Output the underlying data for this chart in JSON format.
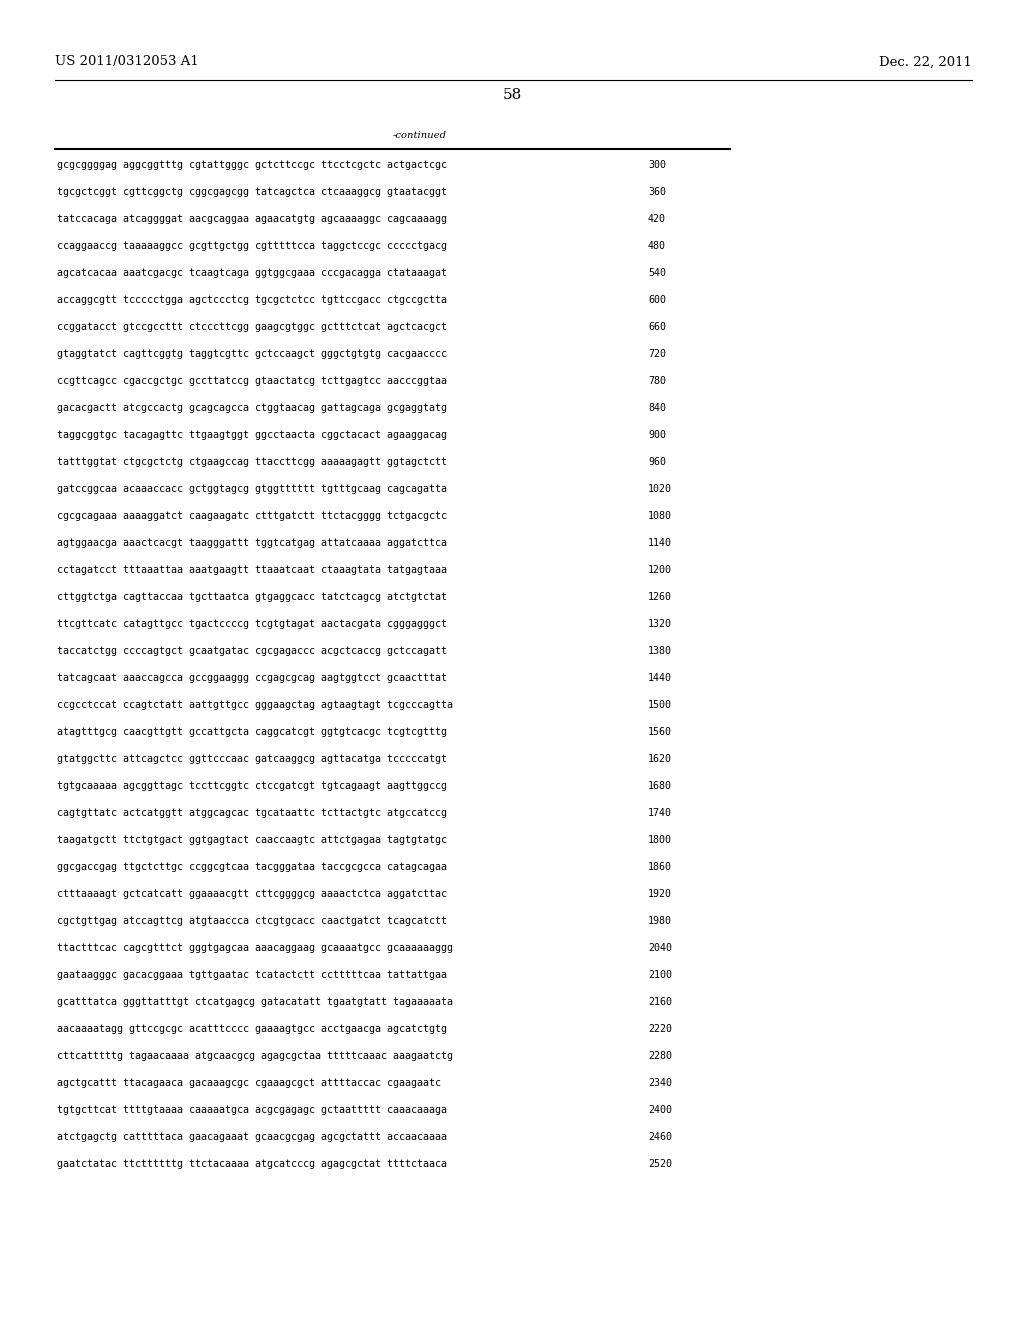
{
  "header_left": "US 2011/0312053 A1",
  "header_right": "Dec. 22, 2011",
  "page_number": "58",
  "continued_label": "-continued",
  "background_color": "#ffffff",
  "text_color": "#000000",
  "font_size_header": 9.5,
  "font_size_body": 7.2,
  "font_size_page": 11,
  "lines": [
    {
      "seq": "gcgcggggag aggcggtttg cgtattgggc gctcttccgc ttcctcgctc actgactcgc",
      "num": "300"
    },
    {
      "seq": "tgcgctcggt cgttcggctg cggcgagcgg tatcagctca ctcaaaggcg gtaatacggt",
      "num": "360"
    },
    {
      "seq": "tatccacaga atcaggggat aacgcaggaa agaacatgtg agcaaaaggc cagcaaaagg",
      "num": "420"
    },
    {
      "seq": "ccaggaaccg taaaaaggcc gcgttgctgg cgtttttcca taggctccgc ccccctgacg",
      "num": "480"
    },
    {
      "seq": "agcatcacaa aaatcgacgc tcaagtcaga ggtggcgaaa cccgacagga ctataaagat",
      "num": "540"
    },
    {
      "seq": "accaggcgtt tccccctgga agctccctcg tgcgctctcc tgttccgacc ctgccgctta",
      "num": "600"
    },
    {
      "seq": "ccggatacct gtccgccttt ctcccttcgg gaagcgtggc gctttctcat agctcacgct",
      "num": "660"
    },
    {
      "seq": "gtaggtatct cagttcggtg taggtcgttc gctccaagct gggctgtgtg cacgaacccc",
      "num": "720"
    },
    {
      "seq": "ccgttcagcc cgaccgctgc gccttatccg gtaactatcg tcttgagtcc aacccggtaa",
      "num": "780"
    },
    {
      "seq": "gacacgactt atcgccactg gcagcagcca ctggtaacag gattagcaga gcgaggtatg",
      "num": "840"
    },
    {
      "seq": "taggcggtgc tacagagttc ttgaagtggt ggcctaacta cggctacact agaaggacag",
      "num": "900"
    },
    {
      "seq": "tatttggtat ctgcgctctg ctgaagccag ttaccttcgg aaaaagagtt ggtagctctt",
      "num": "960"
    },
    {
      "seq": "gatccggcaa acaaaccacc gctggtagcg gtggtttttt tgtttgcaag cagcagatta",
      "num": "1020"
    },
    {
      "seq": "cgcgcagaaa aaaaggatct caagaagatc ctttgatctt ttctacgggg tctgacgctc",
      "num": "1080"
    },
    {
      "seq": "agtggaacga aaactcacgt taagggattt tggtcatgag attatcaaaa aggatcttca",
      "num": "1140"
    },
    {
      "seq": "cctagatcct tttaaattaa aaatgaagtt ttaaatcaat ctaaagtata tatgagtaaa",
      "num": "1200"
    },
    {
      "seq": "cttggtctga cagttaccaa tgcttaatca gtgaggcacc tatctcagcg atctgtctat",
      "num": "1260"
    },
    {
      "seq": "ttcgttcatc catagttgcc tgactccccg tcgtgtagat aactacgata cgggagggct",
      "num": "1320"
    },
    {
      "seq": "taccatctgg ccccagtgct gcaatgatac cgcgagaccc acgctcaccg gctccagatt",
      "num": "1380"
    },
    {
      "seq": "tatcagcaat aaaccagcca gccggaaggg ccgagcgcag aagtggtcct gcaactttat",
      "num": "1440"
    },
    {
      "seq": "ccgcctccat ccagtctatt aattgttgcc gggaagctag agtaagtagt tcgcccagtta",
      "num": "1500"
    },
    {
      "seq": "atagtttgcg caacgttgtt gccattgcta caggcatcgt ggtgtcacgc tcgtcgtttg",
      "num": "1560"
    },
    {
      "seq": "gtatggcttc attcagctcc ggttcccaac gatcaaggcg agttacatga tcccccatgt",
      "num": "1620"
    },
    {
      "seq": "tgtgcaaaaa agcggttagc tccttcggtc ctccgatcgt tgtcagaagt aagttggccg",
      "num": "1680"
    },
    {
      "seq": "cagtgttatc actcatggtt atggcagcac tgcataattc tcttactgtc atgccatccg",
      "num": "1740"
    },
    {
      "seq": "taagatgctt ttctgtgact ggtgagtact caaccaagtc attctgagaa tagtgtatgc",
      "num": "1800"
    },
    {
      "seq": "ggcgaccgag ttgctcttgc ccggcgtcaa tacgggataa taccgcgcca catagcagaa",
      "num": "1860"
    },
    {
      "seq": "ctttaaaagt gctcatcatt ggaaaacgtt cttcggggcg aaaactctca aggatcttac",
      "num": "1920"
    },
    {
      "seq": "cgctgttgag atccagttcg atgtaaccca ctcgtgcacc caactgatct tcagcatctt",
      "num": "1980"
    },
    {
      "seq": "ttactttcac cagcgtttct gggtgagcaa aaacaggaag gcaaaatgcc gcaaaaaaggg",
      "num": "2040"
    },
    {
      "seq": "gaataagggc gacacggaaa tgttgaatac tcatactctt cctttttcaa tattattgaa",
      "num": "2100"
    },
    {
      "seq": "gcatttatca gggttatttgt ctcatgagcg gatacatatt tgaatgtatt tagaaaaata",
      "num": "2160"
    },
    {
      "seq": "aacaaaatagg gttccgcgc acatttcccc gaaaagtgcc acctgaacga agcatctgtg",
      "num": "2220"
    },
    {
      "seq": "cttcatttttg tagaacaaaa atgcaacgcg agagcgctaa tttttcaaac aaagaatctg",
      "num": "2280"
    },
    {
      "seq": "agctgcattt ttacagaaca gacaaagcgc cgaaagcgct attttaccac cgaagaatc",
      "num": "2340"
    },
    {
      "seq": "tgtgcttcat ttttgtaaaa caaaaatgca acgcgagagc gctaattttt caaacaaaga",
      "num": "2400"
    },
    {
      "seq": "atctgagctg catttttaca gaacagaaat gcaacgcgag agcgctattt accaacaaaa",
      "num": "2460"
    },
    {
      "seq": "gaatctatac ttcttttttg ttctacaaaa atgcatcccg agagcgctat ttttctaaca",
      "num": "2520"
    }
  ]
}
